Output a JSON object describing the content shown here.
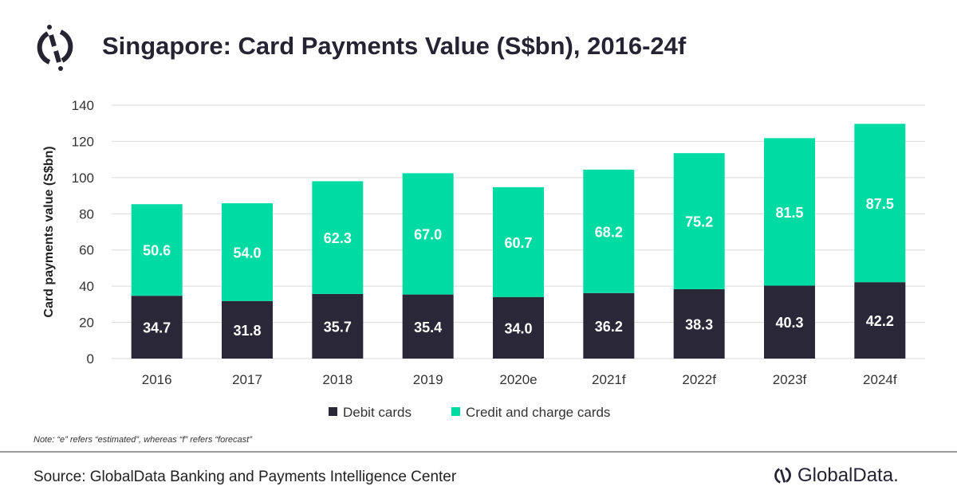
{
  "header": {
    "title": "Singapore: Card Payments Value (S$bn), 2016-24f",
    "logo": "GlobalData"
  },
  "chart_data": {
    "type": "bar",
    "stacked": true,
    "title": "Singapore: Card Payments Value (S$bn), 2016-24f",
    "xlabel": "",
    "ylabel": "Card payments value (S$bn)",
    "ylim": [
      0,
      140
    ],
    "yticks": [
      0,
      20,
      40,
      60,
      80,
      100,
      120,
      140
    ],
    "grid": true,
    "legend_position": "bottom",
    "categories": [
      "2016",
      "2017",
      "2018",
      "2019",
      "2020e",
      "2021f",
      "2022f",
      "2023f",
      "2024f"
    ],
    "series": [
      {
        "name": "Debit cards",
        "color": "#2a2838",
        "values": [
          34.7,
          31.8,
          35.7,
          35.4,
          34.0,
          36.2,
          38.3,
          40.3,
          42.2
        ]
      },
      {
        "name": "Credit and charge cards",
        "color": "#00dba4",
        "values": [
          50.6,
          54.0,
          62.3,
          67.0,
          60.7,
          68.2,
          75.2,
          81.5,
          87.5
        ]
      }
    ]
  },
  "footer": {
    "note": "Note: “e” refers “estimated”, whereas “f” refers “forecast”",
    "source": "Source: GlobalData Banking and Payments Intelligence Center",
    "brand": "GlobalData."
  }
}
